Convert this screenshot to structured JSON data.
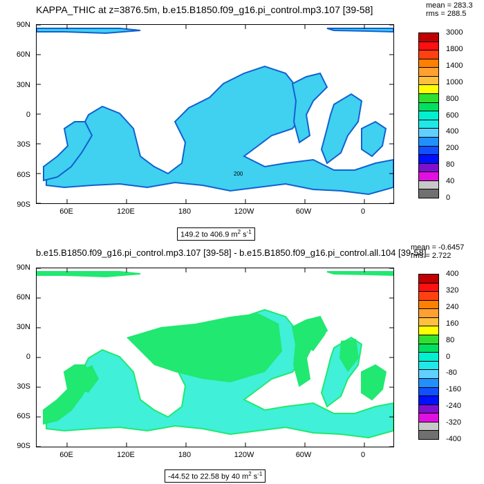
{
  "panels": [
    {
      "title": "KAPPA_THIC at z=3876.5m, b.e15.B1850.f09_g16.pi_control.mp3.107 [39-58]",
      "stats": [
        "mean = 283.3",
        "rms = 288.5"
      ],
      "range_text": "149.2 to 406.9 m",
      "range_unit_sup": "2",
      "range_unit_tail": " s",
      "range_unit_sup2": "-1",
      "colorbar_labels": [
        "3000",
        "1800",
        "1400",
        "1000",
        "800",
        "600",
        "400",
        "200",
        "80",
        "40",
        "0"
      ],
      "colorbar_colors": [
        "#c00000",
        "#ff1010",
        "#ff4010",
        "#ff8000",
        "#ffa030",
        "#ffc040",
        "#ffff00",
        "#30e030",
        "#00e060",
        "#00f0d0",
        "#20e8e8",
        "#60d0ff",
        "#2090ff",
        "#1050ff",
        "#0010ff",
        "#8010d0",
        "#e010e0",
        "#c8c8c8",
        "#707070"
      ],
      "map_fill": "#40d0f0",
      "map_coast": "#1060d0",
      "contour_label": "200"
    },
    {
      "title": "b.e15.B1850.f09_g16.pi_control.mp3.107 [39-58] - b.e15.B1850.f09_g16.pi_control.all.104 [39-58]",
      "stats": [
        "mean = -0.6457",
        "rms = 2.722"
      ],
      "range_text": "-44.52 to 22.58 by 40 m",
      "range_unit_sup": "2",
      "range_unit_tail": " s",
      "range_unit_sup2": "-1",
      "colorbar_labels": [
        "400",
        "320",
        "240",
        "160",
        "80",
        "0",
        "-80",
        "-160",
        "-240",
        "-320",
        "-400"
      ],
      "colorbar_colors": [
        "#c00000",
        "#ff1010",
        "#ff4010",
        "#ff8000",
        "#ffa030",
        "#ffc040",
        "#ffff00",
        "#30e030",
        "#00e060",
        "#00f0d0",
        "#20e8e8",
        "#60d0ff",
        "#2090ff",
        "#1050ff",
        "#0010ff",
        "#8010d0",
        "#e010e0",
        "#c8c8c8",
        "#707070"
      ],
      "map_fill": "#20e870",
      "map_fill2": "#40f0d8",
      "map_coast": "#20e870"
    }
  ],
  "lat_labels": [
    "90N",
    "60N",
    "30N",
    "0",
    "30S",
    "60S",
    "90S"
  ],
  "lon_labels": [
    "60E",
    "120E",
    "180",
    "120W",
    "60W",
    "0"
  ]
}
